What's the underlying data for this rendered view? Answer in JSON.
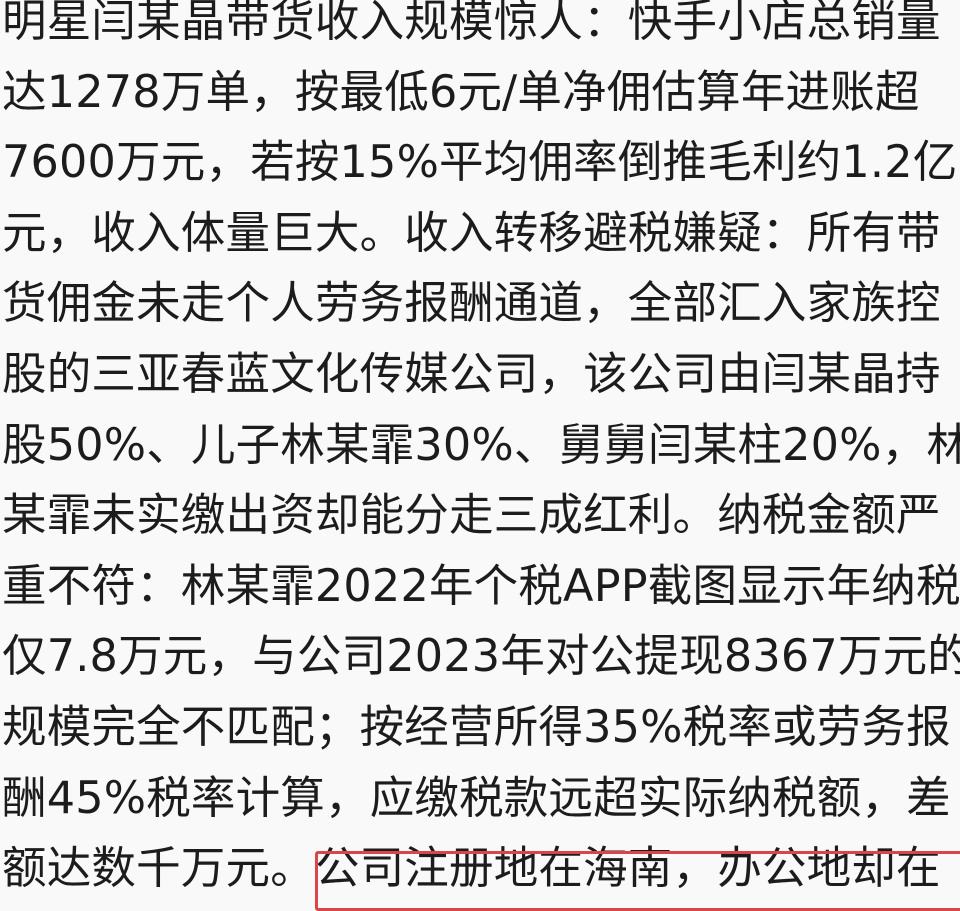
{
  "article": {
    "lines": [
      "明星闫某晶带货收入规模惊人：快手小店总销量",
      "达1278万单，按最低6元/单净佣估算年进账超",
      "7600万元，若按15%平均佣率倒推毛利约1.2亿",
      "元，收入体量巨大。收入转移避税嫌疑：所有带",
      "货佣金未走个人劳务报酬通道，全部汇入家族控",
      "股的三亚春蓝文化传媒公司，该公司由闫某晶持",
      "股50%、儿子林某霏30%、舅舅闫某柱20%，林",
      "某霏未实缴出资却能分走三成红利。纳税金额严",
      "重不符：林某霏2022年个税APP截图显示年纳税",
      "仅7.8万元，与公司2023年对公提现8367万元的",
      "规模完全不匹配；按经营所得35%税率或劳务报",
      "酬45%税率计算，应缴税款远超实际纳税额，差",
      "额达数千万元。公司注册地在海南，办公地却在"
    ],
    "highlight_color": "#d9464a"
  }
}
